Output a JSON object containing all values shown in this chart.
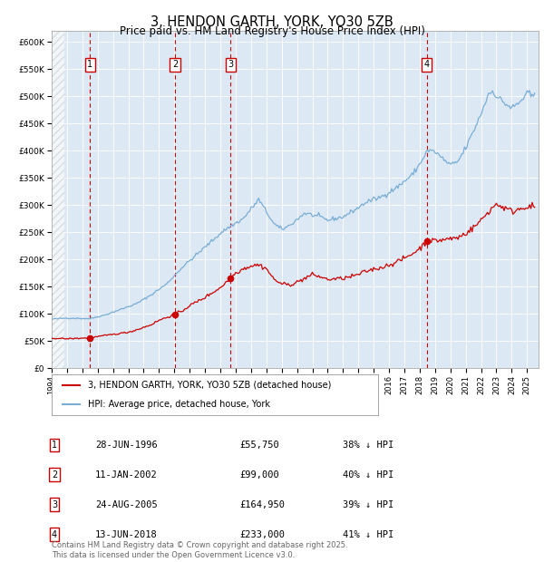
{
  "title": "3, HENDON GARTH, YORK, YO30 5ZB",
  "subtitle": "Price paid vs. HM Land Registry's House Price Index (HPI)",
  "bg_color": "#dce9f5",
  "hpi_color": "#7aadd4",
  "price_color": "#cc0000",
  "ylim": [
    0,
    620000
  ],
  "yticks": [
    0,
    50000,
    100000,
    150000,
    200000,
    250000,
    300000,
    350000,
    400000,
    450000,
    500000,
    550000,
    600000
  ],
  "ytick_labels": [
    "£0",
    "£50K",
    "£100K",
    "£150K",
    "£200K",
    "£250K",
    "£300K",
    "£350K",
    "£400K",
    "£450K",
    "£500K",
    "£550K",
    "£600K"
  ],
  "xlim_start": 1994.0,
  "xlim_end": 2025.75,
  "sale_dates": [
    1996.49,
    2002.04,
    2005.65,
    2018.45
  ],
  "sale_prices": [
    55750,
    99000,
    164950,
    233000
  ],
  "sale_labels": [
    "1",
    "2",
    "3",
    "4"
  ],
  "legend_entries": [
    "3, HENDON GARTH, YORK, YO30 5ZB (detached house)",
    "HPI: Average price, detached house, York"
  ],
  "table_rows": [
    [
      "1",
      "28-JUN-1996",
      "£55,750",
      "38% ↓ HPI"
    ],
    [
      "2",
      "11-JAN-2002",
      "£99,000",
      "40% ↓ HPI"
    ],
    [
      "3",
      "24-AUG-2005",
      "£164,950",
      "39% ↓ HPI"
    ],
    [
      "4",
      "13-JUN-2018",
      "£233,000",
      "41% ↓ HPI"
    ]
  ],
  "footer": "Contains HM Land Registry data © Crown copyright and database right 2025.\nThis data is licensed under the Open Government Licence v3.0.",
  "hpi_anchors": [
    [
      1994.0,
      90000
    ],
    [
      1995.0,
      92000
    ],
    [
      1996.5,
      91000
    ],
    [
      1997.5,
      98000
    ],
    [
      1998.5,
      108000
    ],
    [
      1999.5,
      118000
    ],
    [
      2000.5,
      135000
    ],
    [
      2001.5,
      155000
    ],
    [
      2002.0,
      170000
    ],
    [
      2002.5,
      185000
    ],
    [
      2003.5,
      210000
    ],
    [
      2004.5,
      235000
    ],
    [
      2005.0,
      248000
    ],
    [
      2005.5,
      258000
    ],
    [
      2006.5,
      275000
    ],
    [
      2007.5,
      310000
    ],
    [
      2008.5,
      265000
    ],
    [
      2009.0,
      255000
    ],
    [
      2009.5,
      262000
    ],
    [
      2010.5,
      285000
    ],
    [
      2011.5,
      278000
    ],
    [
      2012.0,
      272000
    ],
    [
      2013.0,
      278000
    ],
    [
      2014.0,
      295000
    ],
    [
      2014.5,
      305000
    ],
    [
      2015.5,
      315000
    ],
    [
      2016.5,
      332000
    ],
    [
      2017.5,
      355000
    ],
    [
      2018.0,
      375000
    ],
    [
      2018.5,
      400000
    ],
    [
      2019.0,
      398000
    ],
    [
      2019.5,
      385000
    ],
    [
      2020.0,
      373000
    ],
    [
      2020.5,
      380000
    ],
    [
      2021.0,
      405000
    ],
    [
      2021.5,
      435000
    ],
    [
      2022.0,
      468000
    ],
    [
      2022.5,
      505000
    ],
    [
      2022.8,
      510000
    ],
    [
      2023.0,
      500000
    ],
    [
      2023.5,
      488000
    ],
    [
      2024.0,
      478000
    ],
    [
      2024.5,
      488000
    ],
    [
      2025.0,
      505000
    ],
    [
      2025.5,
      498000
    ]
  ],
  "price_anchors": [
    [
      1994.0,
      55000
    ],
    [
      1995.0,
      54000
    ],
    [
      1995.5,
      54500
    ],
    [
      1996.49,
      55750
    ],
    [
      1997.0,
      58000
    ],
    [
      1997.5,
      60000
    ],
    [
      1998.0,
      62000
    ],
    [
      1999.0,
      66000
    ],
    [
      1999.5,
      70000
    ],
    [
      2000.5,
      80000
    ],
    [
      2001.0,
      88000
    ],
    [
      2002.04,
      99000
    ],
    [
      2002.5,
      105000
    ],
    [
      2003.0,
      115000
    ],
    [
      2004.0,
      130000
    ],
    [
      2005.0,
      148000
    ],
    [
      2005.65,
      164950
    ],
    [
      2006.0,
      175000
    ],
    [
      2006.5,
      183000
    ],
    [
      2007.0,
      188000
    ],
    [
      2007.5,
      190000
    ],
    [
      2008.0,
      183000
    ],
    [
      2008.5,
      163000
    ],
    [
      2009.0,
      155000
    ],
    [
      2009.5,
      153000
    ],
    [
      2010.0,
      158000
    ],
    [
      2010.5,
      165000
    ],
    [
      2011.0,
      172000
    ],
    [
      2011.5,
      168000
    ],
    [
      2012.0,
      163000
    ],
    [
      2013.0,
      165000
    ],
    [
      2013.5,
      168000
    ],
    [
      2014.0,
      172000
    ],
    [
      2014.5,
      178000
    ],
    [
      2015.0,
      182000
    ],
    [
      2015.5,
      185000
    ],
    [
      2016.0,
      190000
    ],
    [
      2016.5,
      195000
    ],
    [
      2017.0,
      202000
    ],
    [
      2017.5,
      210000
    ],
    [
      2018.0,
      220000
    ],
    [
      2018.45,
      233000
    ],
    [
      2018.5,
      234000
    ],
    [
      2019.0,
      234000
    ],
    [
      2019.5,
      236000
    ],
    [
      2020.0,
      238000
    ],
    [
      2020.5,
      240000
    ],
    [
      2021.0,
      248000
    ],
    [
      2021.5,
      258000
    ],
    [
      2022.0,
      272000
    ],
    [
      2022.5,
      288000
    ],
    [
      2023.0,
      302000
    ],
    [
      2023.5,
      295000
    ],
    [
      2024.0,
      288000
    ],
    [
      2024.5,
      293000
    ],
    [
      2025.0,
      298000
    ],
    [
      2025.5,
      295000
    ]
  ]
}
